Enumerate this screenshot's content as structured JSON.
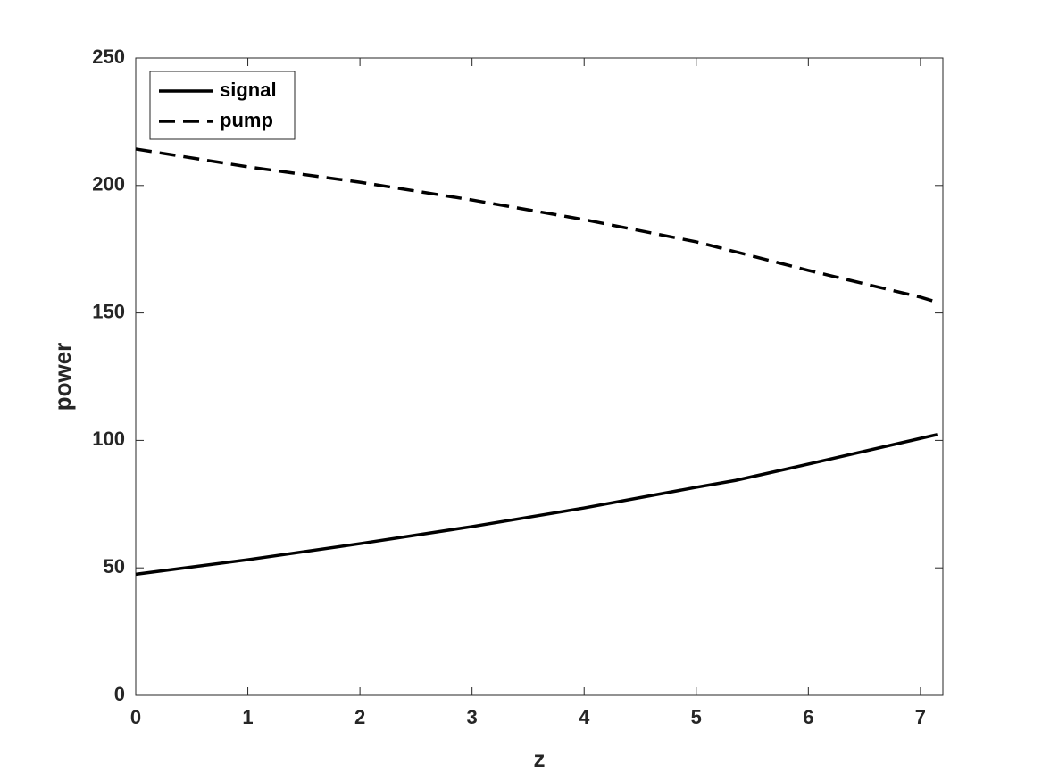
{
  "chart_data": {
    "type": "line",
    "xlabel": "z",
    "ylabel": "power",
    "x": [
      0,
      1,
      2,
      3,
      4,
      5,
      5.35,
      6,
      7,
      7.15
    ],
    "series": [
      {
        "name": "signal",
        "color": "#000000",
        "dash": "solid",
        "values": [
          47.5,
          53.2,
          59.5,
          66.2,
          73.5,
          81.6,
          84.3,
          90.7,
          100.8,
          102.3
        ]
      },
      {
        "name": "pump",
        "color": "#000000",
        "dash": "dashed",
        "values": [
          214.3,
          207.3,
          201.3,
          194.3,
          186.6,
          177.9,
          174.0,
          166.7,
          156.2,
          154.2
        ]
      }
    ],
    "xlim": [
      0,
      7.2
    ],
    "xticks": [
      0,
      1,
      2,
      3,
      4,
      5,
      6,
      7
    ],
    "ylim": [
      0,
      250
    ],
    "yticks": [
      0,
      50,
      100,
      150,
      200,
      250
    ],
    "grid": false,
    "legend": "top-left"
  }
}
